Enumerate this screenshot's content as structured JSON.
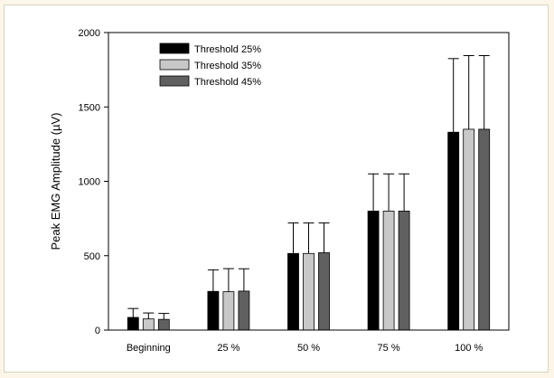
{
  "chart_data": {
    "type": "bar",
    "title": "",
    "xlabel": "",
    "ylabel": "Peak EMG Amplitude (µV)",
    "ylim": [
      0,
      2000
    ],
    "yticks": [
      0,
      500,
      1000,
      1500,
      2000
    ],
    "grid": false,
    "legend_position": "top-left",
    "categories": [
      "Beginning",
      "25 %",
      "50 %",
      "75 %",
      "100 %"
    ],
    "series": [
      {
        "name": "Threshold 25%",
        "color": "#000000",
        "values": [
          85,
          260,
          515,
          800,
          1330
        ],
        "errors": [
          60,
          145,
          205,
          250,
          495
        ]
      },
      {
        "name": "Threshold 35%",
        "color": "#c8c8c8",
        "values": [
          75,
          258,
          515,
          800,
          1350
        ],
        "errors": [
          40,
          155,
          205,
          250,
          495
        ]
      },
      {
        "name": "Threshold 45%",
        "color": "#606060",
        "values": [
          72,
          262,
          520,
          800,
          1350
        ],
        "errors": [
          40,
          150,
          200,
          250,
          495
        ]
      }
    ]
  }
}
